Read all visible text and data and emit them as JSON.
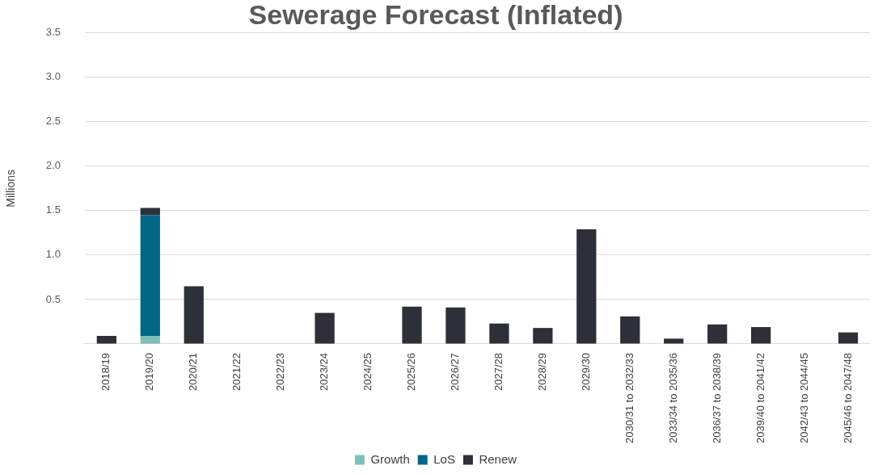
{
  "chart_data": {
    "type": "bar",
    "title": "Sewerage Forecast (Inflated)",
    "ylabel": "Millions",
    "stacked": true,
    "grid": "y",
    "legend": "bottom",
    "categories": [
      "2018/19",
      "2019/20",
      "2020/21",
      "2021/22",
      "2022/23",
      "2023/24",
      "2024/25",
      "2025/26",
      "2026/27",
      "2027/28",
      "2028/29",
      "2029/30",
      "2030/31 to 2032/33",
      "2033/34 to 2035/36",
      "2036/37 to 2038/39",
      "2039/40 to 2041/42",
      "2042/43 to 2044/45",
      "2045/46 to 2047/48"
    ],
    "ylim": [
      0,
      3.5
    ],
    "yticks": [
      {
        "value": 0,
        "label": null
      },
      0.5,
      {
        "value": 1,
        "label": "1.0"
      },
      1.5,
      {
        "value": 2,
        "label": "2.0"
      },
      2.5,
      {
        "value": 3,
        "label": "3.0"
      },
      3.5
    ],
    "series": [
      {
        "name": "Growth",
        "color": "#7fbfb9",
        "values": [
          0,
          0.09,
          0,
          0,
          0,
          0,
          0,
          0,
          0,
          0,
          0,
          0,
          0,
          0,
          0,
          0,
          0,
          0
        ]
      },
      {
        "name": "LoS",
        "color": "#006786",
        "values": [
          0,
          1.36,
          0,
          0,
          0,
          0,
          0,
          0,
          0,
          0,
          0,
          0,
          0,
          0,
          0,
          0,
          0,
          0
        ]
      },
      {
        "name": "Renew",
        "color": "#2d3038",
        "values": [
          0.09,
          0.08,
          0.65,
          0,
          0,
          0.35,
          0,
          0.42,
          0.41,
          0.23,
          0.18,
          1.29,
          0.31,
          0.06,
          0.22,
          0.19,
          0,
          0.13
        ]
      }
    ]
  }
}
